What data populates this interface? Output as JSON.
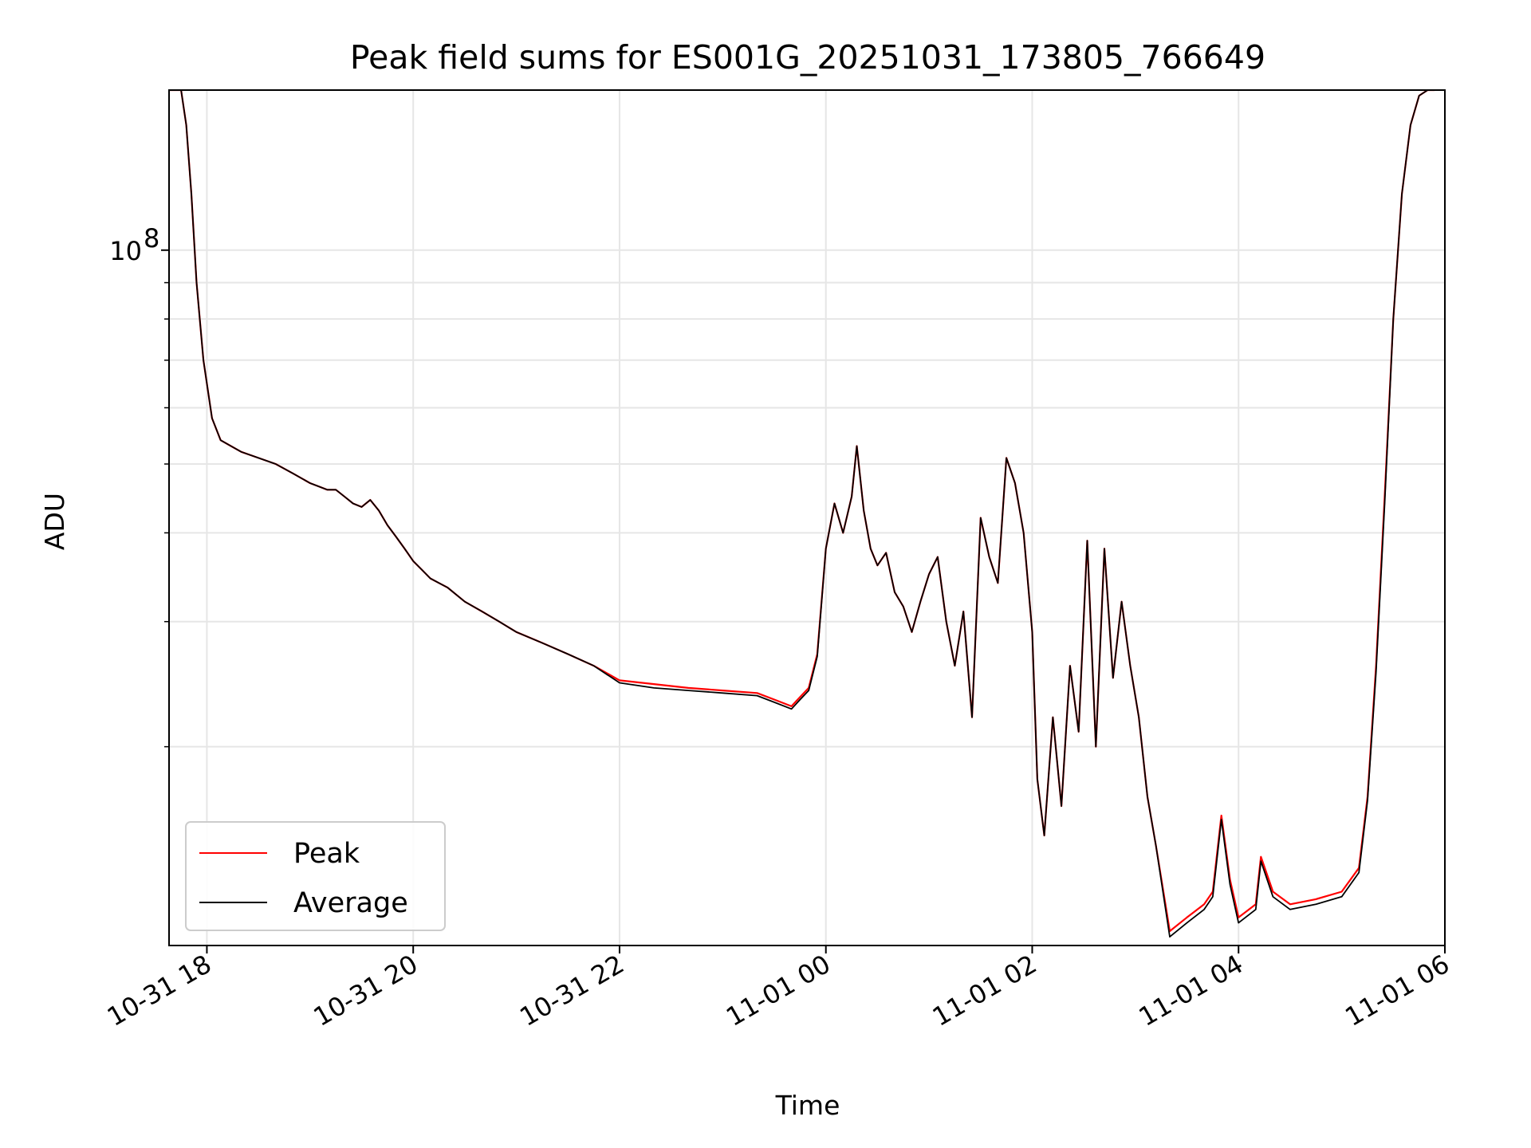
{
  "chart_data": {
    "type": "line",
    "title": "Peak field sums for ES001G_20251031_173805_766649",
    "xlabel": "Time",
    "ylabel": "ADU",
    "x_axis": {
      "type": "datetime",
      "range": [
        "2025-10-31 17:38",
        "2025-11-01 06:00"
      ],
      "ticks": [
        "10-31 18",
        "10-31 20",
        "10-31 22",
        "11-01 00",
        "11-01 02",
        "11-01 04",
        "11-01 06"
      ]
    },
    "y_axis": {
      "scale": "log",
      "range": [
        10500000,
        168000000
      ],
      "labeled_ticks": [
        {
          "value": 100000000,
          "base": "10",
          "exp": "8"
        }
      ],
      "minor_ticks": [
        20000000,
        30000000,
        40000000,
        50000000,
        60000000,
        70000000,
        80000000,
        90000000
      ]
    },
    "grid": true,
    "legend_position": "lower-left",
    "series": [
      {
        "name": "Peak",
        "color": "#ff0000",
        "x": [
          "2025-10-31 17:38",
          "2025-10-31 17:45",
          "2025-10-31 17:48",
          "2025-10-31 17:51",
          "2025-10-31 17:54",
          "2025-10-31 17:58",
          "2025-10-31 18:03",
          "2025-10-31 18:08",
          "2025-10-31 18:14",
          "2025-10-31 18:20",
          "2025-10-31 18:30",
          "2025-10-31 18:40",
          "2025-10-31 18:50",
          "2025-10-31 19:00",
          "2025-10-31 19:05",
          "2025-10-31 19:10",
          "2025-10-31 19:15",
          "2025-10-31 19:20",
          "2025-10-31 19:25",
          "2025-10-31 19:30",
          "2025-10-31 19:35",
          "2025-10-31 19:40",
          "2025-10-31 19:45",
          "2025-10-31 19:50",
          "2025-10-31 19:55",
          "2025-10-31 20:00",
          "2025-10-31 20:05",
          "2025-10-31 20:10",
          "2025-10-31 20:15",
          "2025-10-31 20:20",
          "2025-10-31 20:30",
          "2025-10-31 20:40",
          "2025-10-31 20:50",
          "2025-10-31 21:00",
          "2025-10-31 21:15",
          "2025-10-31 21:30",
          "2025-10-31 21:45",
          "2025-10-31 22:00",
          "2025-10-31 22:20",
          "2025-10-31 22:40",
          "2025-10-31 23:00",
          "2025-10-31 23:20",
          "2025-10-31 23:30",
          "2025-10-31 23:40",
          "2025-10-31 23:45",
          "2025-10-31 23:50",
          "2025-10-31 23:55",
          "2025-11-01 00:00",
          "2025-11-01 00:05",
          "2025-11-01 00:10",
          "2025-11-01 00:15",
          "2025-11-01 00:18",
          "2025-11-01 00:22",
          "2025-11-01 00:26",
          "2025-11-01 00:30",
          "2025-11-01 00:35",
          "2025-11-01 00:40",
          "2025-11-01 00:45",
          "2025-11-01 00:50",
          "2025-11-01 00:55",
          "2025-11-01 01:00",
          "2025-11-01 01:05",
          "2025-11-01 01:10",
          "2025-11-01 01:15",
          "2025-11-01 01:20",
          "2025-11-01 01:25",
          "2025-11-01 01:30",
          "2025-11-01 01:35",
          "2025-11-01 01:40",
          "2025-11-01 01:45",
          "2025-11-01 01:50",
          "2025-11-01 01:55",
          "2025-11-01 02:00",
          "2025-11-01 02:03",
          "2025-11-01 02:07",
          "2025-11-01 02:12",
          "2025-11-01 02:17",
          "2025-11-01 02:22",
          "2025-11-01 02:27",
          "2025-11-01 02:32",
          "2025-11-01 02:37",
          "2025-11-01 02:42",
          "2025-11-01 02:47",
          "2025-11-01 02:52",
          "2025-11-01 02:57",
          "2025-11-01 03:02",
          "2025-11-01 03:07",
          "2025-11-01 03:12",
          "2025-11-01 03:20",
          "2025-11-01 03:30",
          "2025-11-01 03:40",
          "2025-11-01 03:45",
          "2025-11-01 03:50",
          "2025-11-01 03:55",
          "2025-11-01 04:00",
          "2025-11-01 04:10",
          "2025-11-01 04:13",
          "2025-11-01 04:20",
          "2025-11-01 04:30",
          "2025-11-01 04:45",
          "2025-11-01 05:00",
          "2025-11-01 05:10",
          "2025-11-01 05:15",
          "2025-11-01 05:20",
          "2025-11-01 05:25",
          "2025-11-01 05:30",
          "2025-11-01 05:35",
          "2025-11-01 05:40",
          "2025-11-01 05:45",
          "2025-11-01 05:50",
          "2025-11-01 05:54"
        ],
        "values": [
          168000000,
          168000000,
          150000000,
          120000000,
          90000000,
          70000000,
          58000000,
          54000000,
          53000000,
          52000000,
          51000000,
          50000000,
          48500000,
          47000000,
          46500000,
          46000000,
          46000000,
          45000000,
          44000000,
          43500000,
          44500000,
          43000000,
          41000000,
          39500000,
          38000000,
          36500000,
          35500000,
          34500000,
          34000000,
          33500000,
          32000000,
          31000000,
          30000000,
          29000000,
          28000000,
          27000000,
          26000000,
          24800000,
          24500000,
          24200000,
          24000000,
          23800000,
          23300000,
          22800000,
          23500000,
          24200000,
          27000000,
          38000000,
          44000000,
          40000000,
          45000000,
          53000000,
          43000000,
          38000000,
          36000000,
          37500000,
          33000000,
          31500000,
          29000000,
          32000000,
          35000000,
          37000000,
          30000000,
          26000000,
          31000000,
          22000000,
          42000000,
          37000000,
          34000000,
          51000000,
          47000000,
          40000000,
          29000000,
          18000000,
          15000000,
          22000000,
          16500000,
          26000000,
          21000000,
          39000000,
          20000000,
          38000000,
          25000000,
          32000000,
          26000000,
          22000000,
          17000000,
          14500000,
          11000000,
          11500000,
          12000000,
          12500000,
          16000000,
          13000000,
          11500000,
          12000000,
          14000000,
          12500000,
          12000000,
          12200000,
          12500000,
          13500000,
          17000000,
          26000000,
          45000000,
          80000000,
          120000000,
          150000000,
          165000000,
          168000000,
          168000000
        ]
      },
      {
        "name": "Average",
        "color": "#000000",
        "x": [
          "2025-10-31 17:38",
          "2025-10-31 17:45",
          "2025-10-31 17:48",
          "2025-10-31 17:51",
          "2025-10-31 17:54",
          "2025-10-31 17:58",
          "2025-10-31 18:03",
          "2025-10-31 18:08",
          "2025-10-31 18:14",
          "2025-10-31 18:20",
          "2025-10-31 18:30",
          "2025-10-31 18:40",
          "2025-10-31 18:50",
          "2025-10-31 19:00",
          "2025-10-31 19:05",
          "2025-10-31 19:10",
          "2025-10-31 19:15",
          "2025-10-31 19:20",
          "2025-10-31 19:25",
          "2025-10-31 19:30",
          "2025-10-31 19:35",
          "2025-10-31 19:40",
          "2025-10-31 19:45",
          "2025-10-31 19:50",
          "2025-10-31 19:55",
          "2025-10-31 20:00",
          "2025-10-31 20:05",
          "2025-10-31 20:10",
          "2025-10-31 20:15",
          "2025-10-31 20:20",
          "2025-10-31 20:30",
          "2025-10-31 20:40",
          "2025-10-31 20:50",
          "2025-10-31 21:00",
          "2025-10-31 21:15",
          "2025-10-31 21:30",
          "2025-10-31 21:45",
          "2025-10-31 22:00",
          "2025-10-31 22:20",
          "2025-10-31 22:40",
          "2025-10-31 23:00",
          "2025-10-31 23:20",
          "2025-10-31 23:30",
          "2025-10-31 23:40",
          "2025-10-31 23:45",
          "2025-10-31 23:50",
          "2025-10-31 23:55",
          "2025-11-01 00:00",
          "2025-11-01 00:05",
          "2025-11-01 00:10",
          "2025-11-01 00:15",
          "2025-11-01 00:18",
          "2025-11-01 00:22",
          "2025-11-01 00:26",
          "2025-11-01 00:30",
          "2025-11-01 00:35",
          "2025-11-01 00:40",
          "2025-11-01 00:45",
          "2025-11-01 00:50",
          "2025-11-01 00:55",
          "2025-11-01 01:00",
          "2025-11-01 01:05",
          "2025-11-01 01:10",
          "2025-11-01 01:15",
          "2025-11-01 01:20",
          "2025-11-01 01:25",
          "2025-11-01 01:30",
          "2025-11-01 01:35",
          "2025-11-01 01:40",
          "2025-11-01 01:45",
          "2025-11-01 01:50",
          "2025-11-01 01:55",
          "2025-11-01 02:00",
          "2025-11-01 02:03",
          "2025-11-01 02:07",
          "2025-11-01 02:12",
          "2025-11-01 02:17",
          "2025-11-01 02:22",
          "2025-11-01 02:27",
          "2025-11-01 02:32",
          "2025-11-01 02:37",
          "2025-11-01 02:42",
          "2025-11-01 02:47",
          "2025-11-01 02:52",
          "2025-11-01 02:57",
          "2025-11-01 03:02",
          "2025-11-01 03:07",
          "2025-11-01 03:12",
          "2025-11-01 03:20",
          "2025-11-01 03:30",
          "2025-11-01 03:40",
          "2025-11-01 03:45",
          "2025-11-01 03:50",
          "2025-11-01 03:55",
          "2025-11-01 04:00",
          "2025-11-01 04:10",
          "2025-11-01 04:13",
          "2025-11-01 04:20",
          "2025-11-01 04:30",
          "2025-11-01 04:45",
          "2025-11-01 05:00",
          "2025-11-01 05:10",
          "2025-11-01 05:15",
          "2025-11-01 05:20",
          "2025-11-01 05:25",
          "2025-11-01 05:30",
          "2025-11-01 05:35",
          "2025-11-01 05:40",
          "2025-11-01 05:45",
          "2025-11-01 05:50",
          "2025-11-01 05:54"
        ],
        "values": [
          168000000,
          168000000,
          150000000,
          120000000,
          90000000,
          70000000,
          58000000,
          54000000,
          53000000,
          52000000,
          51000000,
          50000000,
          48500000,
          47000000,
          46500000,
          46000000,
          46000000,
          45000000,
          44000000,
          43500000,
          44500000,
          43000000,
          41000000,
          39500000,
          38000000,
          36500000,
          35500000,
          34500000,
          34000000,
          33500000,
          32000000,
          31000000,
          30000000,
          29000000,
          28000000,
          27000000,
          26000000,
          24600000,
          24200000,
          24000000,
          23800000,
          23600000,
          23100000,
          22600000,
          23300000,
          24000000,
          26800000,
          38000000,
          44000000,
          40000000,
          45000000,
          53000000,
          43000000,
          38000000,
          36000000,
          37500000,
          33000000,
          31500000,
          29000000,
          32000000,
          35000000,
          37000000,
          30000000,
          26000000,
          31000000,
          22000000,
          42000000,
          37000000,
          34000000,
          51000000,
          47000000,
          40000000,
          29000000,
          18000000,
          15000000,
          22000000,
          16500000,
          26000000,
          21000000,
          39000000,
          20000000,
          38000000,
          25000000,
          32000000,
          26000000,
          22000000,
          17000000,
          14500000,
          10800000,
          11300000,
          11800000,
          12300000,
          15800000,
          12800000,
          11300000,
          11800000,
          13800000,
          12300000,
          11800000,
          12000000,
          12300000,
          13300000,
          16800000,
          25500000,
          44000000,
          80000000,
          120000000,
          150000000,
          165000000,
          168000000,
          168000000
        ]
      }
    ]
  }
}
